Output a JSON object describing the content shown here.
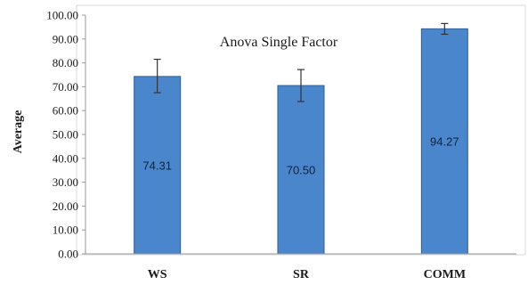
{
  "chart_data": {
    "type": "bar",
    "title": "Anova Single Factor",
    "xlabel": "",
    "ylabel": "Average",
    "categories": [
      "WS",
      "SR",
      "COMM"
    ],
    "values": [
      74.31,
      70.5,
      94.27
    ],
    "value_labels": [
      "74.31",
      "70.50",
      "94.27"
    ],
    "error_bars": [
      {
        "low": 67.5,
        "high": 81.5
      },
      {
        "low": 63.8,
        "high": 77.2
      },
      {
        "low": 92.0,
        "high": 96.5
      }
    ],
    "ylim": [
      0,
      100
    ],
    "yticks": [
      "0.00",
      "10.00",
      "20.00",
      "30.00",
      "40.00",
      "50.00",
      "60.00",
      "70.00",
      "80.00",
      "90.00",
      "100.00"
    ],
    "grid": false,
    "legend": "none",
    "colors": {
      "bar": "#4a86cc",
      "bar_edge": "#2f5e96",
      "error_bar": "#333333",
      "axis": "#9a9a9a"
    }
  }
}
